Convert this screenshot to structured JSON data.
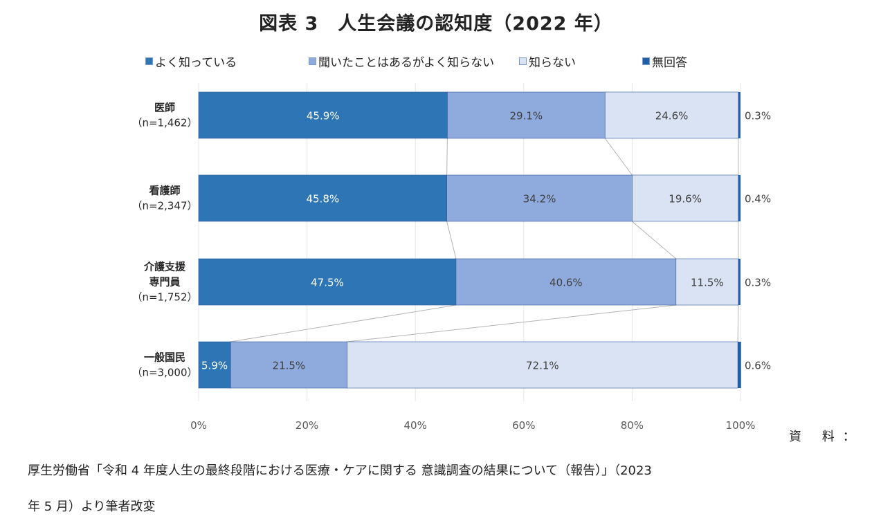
{
  "chart_data": {
    "type": "bar",
    "stacked": "percent",
    "orientation": "horizontal",
    "title": "図表 3　人生会議の認知度（2022 年）",
    "categories": [
      {
        "name": "医師",
        "n": "（n=1,462）"
      },
      {
        "name": "看護師",
        "n": "（n=2,347）"
      },
      {
        "name": "介護支援\n専門員",
        "n": "（n=1,752）"
      },
      {
        "name": "一般国民",
        "n": "（n=3,000）"
      }
    ],
    "series": [
      {
        "name": "よく知っている",
        "color": "#2e75b6",
        "values": [
          45.9,
          45.8,
          47.5,
          5.9
        ],
        "labels": [
          "45.9%",
          "45.8%",
          "47.5%",
          "5.9%"
        ]
      },
      {
        "name": "聞いたことはあるがよく知らない",
        "color": "#8faadc",
        "values": [
          29.1,
          34.2,
          40.6,
          21.5
        ],
        "labels": [
          "29.1%",
          "34.2%",
          "40.6%",
          "21.5%"
        ]
      },
      {
        "name": "知らない",
        "color": "#dae3f3",
        "values": [
          24.6,
          19.6,
          11.5,
          72.1
        ],
        "labels": [
          "24.6%",
          "19.6%",
          "11.5%",
          "72.1%"
        ]
      },
      {
        "name": "無回答",
        "color": "#1f5fa8",
        "values": [
          0.3,
          0.4,
          0.3,
          0.6
        ],
        "labels": [
          "0.3%",
          "0.4%",
          "0.3%",
          "0.6%"
        ]
      }
    ],
    "xaxis": {
      "ticks": [
        "0%",
        "20%",
        "40%",
        "60%",
        "80%",
        "100%"
      ],
      "range": [
        0,
        100
      ]
    },
    "legend_position": "top"
  },
  "source": {
    "label": "資 料：",
    "line1": "厚生労働省「令和 4 年度人生の最終段階における医療・ケアに関する 意識調査の結果について（報告）」（2023",
    "line2": "年 5 月）より筆者改変"
  }
}
